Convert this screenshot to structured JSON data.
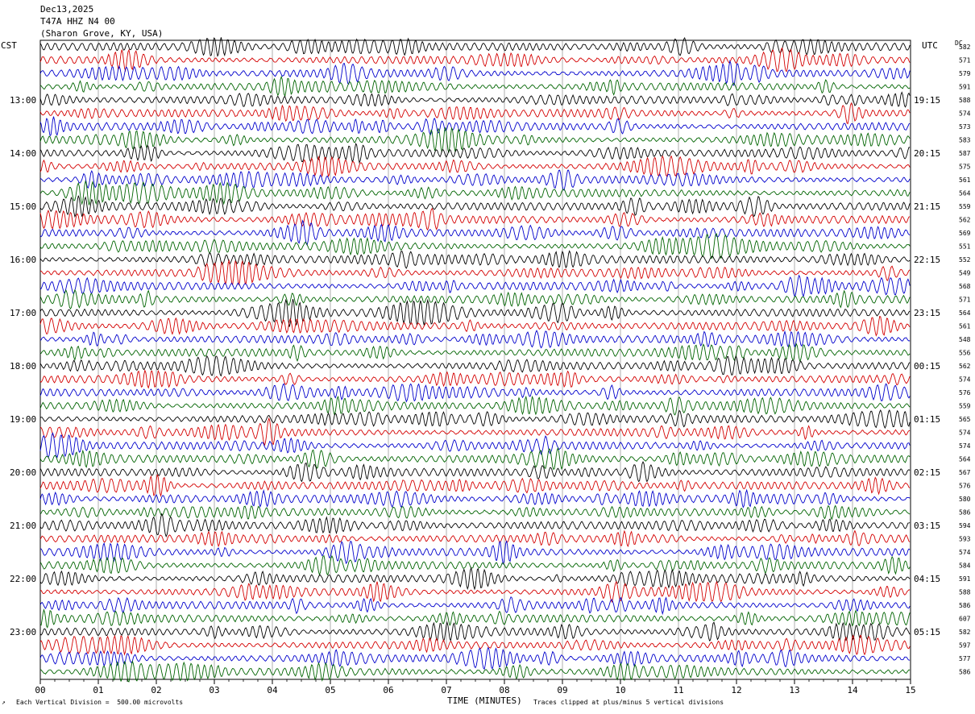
{
  "header": {
    "date": "Dec13,2025",
    "station": "T47A HHZ N4 00",
    "location": "(Sharon Grove, KY, USA)"
  },
  "left_axis_label": "CST",
  "right_axis_label": "UTC",
  "dc_label": "DC",
  "footer": {
    "scale_note": "Each Vertical Division =  500.00 microvolts",
    "xlabel": "TIME (MINUTES)",
    "clip_note": "Traces clipped at plus/minus 5 vertical divisions"
  },
  "colors": {
    "trace_cycle": [
      "#000000",
      "#d40000",
      "#0000cc",
      "#006400"
    ],
    "grid": "#7a7a7a"
  },
  "chart_data": {
    "type": "line",
    "xlabel": "TIME (MINUTES)",
    "xlim": [
      0,
      15
    ],
    "x_ticks": [
      "00",
      "01",
      "02",
      "03",
      "04",
      "05",
      "06",
      "07",
      "08",
      "09",
      "10",
      "11",
      "12",
      "13",
      "14",
      "15"
    ],
    "rows": 48,
    "left_time_labels": [
      {
        "row": 4,
        "label": "13:00"
      },
      {
        "row": 8,
        "label": "14:00"
      },
      {
        "row": 12,
        "label": "15:00"
      },
      {
        "row": 16,
        "label": "16:00"
      },
      {
        "row": 20,
        "label": "17:00"
      },
      {
        "row": 24,
        "label": "18:00"
      },
      {
        "row": 28,
        "label": "19:00"
      },
      {
        "row": 32,
        "label": "20:00"
      },
      {
        "row": 36,
        "label": "21:00"
      },
      {
        "row": 40,
        "label": "22:00"
      },
      {
        "row": 44,
        "label": "23:00"
      }
    ],
    "right_time_labels": [
      {
        "row": 4,
        "label": "19:15"
      },
      {
        "row": 8,
        "label": "20:15"
      },
      {
        "row": 12,
        "label": "21:15"
      },
      {
        "row": 16,
        "label": "22:15"
      },
      {
        "row": 20,
        "label": "23:15"
      },
      {
        "row": 24,
        "label": "00:15"
      },
      {
        "row": 28,
        "label": "01:15"
      },
      {
        "row": 32,
        "label": "02:15"
      },
      {
        "row": 36,
        "label": "03:15"
      },
      {
        "row": 40,
        "label": "04:15"
      },
      {
        "row": 44,
        "label": "05:15"
      }
    ],
    "dc_offsets": [
      582,
      571,
      579,
      591,
      588,
      574,
      573,
      583,
      587,
      575,
      561,
      564,
      559,
      562,
      569,
      551,
      552,
      549,
      568,
      571,
      564,
      561,
      548,
      556,
      562,
      574,
      576,
      559,
      565,
      574,
      574,
      564,
      567,
      576,
      580,
      586,
      594,
      593,
      574,
      584,
      591,
      588,
      586,
      607,
      582,
      597,
      577,
      586
    ]
  }
}
